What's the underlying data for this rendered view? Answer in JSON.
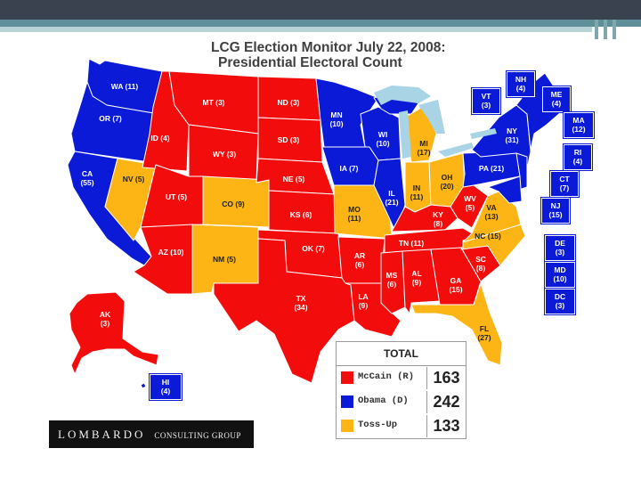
{
  "title": {
    "line1": "LCG Election Monitor July 22, 2008:",
    "line2": "Presidential Electoral Count"
  },
  "colors": {
    "mccain": "#f20c0c",
    "obama": "#0b1ad6",
    "tossup": "#fcb514",
    "lakes": "#a8d4e6"
  },
  "states": {
    "WA": "WA (11)",
    "OR": "OR (7)",
    "CA": "CA\n(55)",
    "NV": "NV (5)",
    "ID": "ID (4)",
    "MT": "MT (3)",
    "WY": "WY (3)",
    "UT": "UT (5)",
    "CO": "CO (9)",
    "AZ": "AZ (10)",
    "NM": "NM (5)",
    "ND": "ND (3)",
    "SD": "SD (3)",
    "NE": "NE (5)",
    "KS": "KS (6)",
    "OK": "OK (7)",
    "TX": "TX\n(34)",
    "MN": "MN\n(10)",
    "IA": "IA (7)",
    "MO": "MO\n(11)",
    "AR": "AR\n(6)",
    "LA": "LA\n(9)",
    "WI": "WI\n(10)",
    "IL": "IL\n(21)",
    "MI": "MI\n(17)",
    "IN": "IN\n(11)",
    "OH": "OH\n(20)",
    "KY": "KY\n(8)",
    "TN": "TN (11)",
    "MS": "MS\n(6)",
    "AL": "AL\n(9)",
    "GA": "GA\n(15)",
    "FL": "FL\n(27)",
    "SC": "SC\n(8)",
    "NC": "NC (15)",
    "VA": "VA\n(13)",
    "WV": "WV\n(5)",
    "PA": "PA (21)",
    "NY": "NY\n(31)",
    "AK": "AK\n(3)"
  },
  "boxes": {
    "NH": "NH\n(4)",
    "VT": "VT\n(3)",
    "ME": "ME\n(4)",
    "MA": "MA\n(12)",
    "RI": "RI\n(4)",
    "CT": "CT\n(7)",
    "NJ": "NJ\n(15)",
    "DE": "DE\n(3)",
    "MD": "MD\n(10)",
    "DC": "DC\n(3)",
    "HI": "HI\n(4)"
  },
  "totals": {
    "heading": "TOTAL",
    "rows": [
      {
        "name": "McCain (R)",
        "value": "163",
        "color": "#f20c0c"
      },
      {
        "name": "Obama (D)",
        "value": "242",
        "color": "#0b1ad6"
      },
      {
        "name": "Toss-Up",
        "value": "133",
        "color": "#fcb514"
      }
    ]
  },
  "logo": {
    "main": "LOMBARDO",
    "sub": "CONSULTING GROUP"
  }
}
